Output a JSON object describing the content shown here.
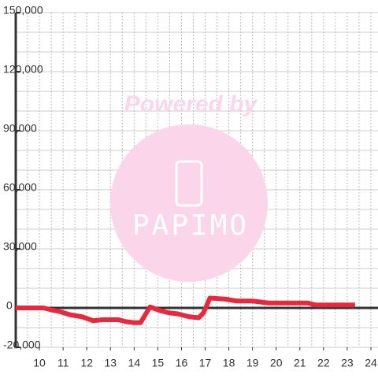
{
  "chart_data": {
    "type": "line",
    "watermark": {
      "title": "Powered by",
      "logo": "PAPIMO"
    },
    "x": [
      9.0,
      10.17,
      10.5,
      10.9,
      11.3,
      11.8,
      12.27,
      12.67,
      13.33,
      13.67,
      14.0,
      14.27,
      14.67,
      15.13,
      15.47,
      15.83,
      16.33,
      16.73,
      16.93,
      17.2,
      17.83,
      18.33,
      19.0,
      19.67,
      21.0,
      21.33,
      21.67,
      22.33,
      23.33
    ],
    "values": [
      0,
      0,
      -1000,
      -2000,
      -3500,
      -4500,
      -6500,
      -6000,
      -6000,
      -7000,
      -7500,
      -7500,
      500,
      -1500,
      -2500,
      -3000,
      -4500,
      -5000,
      -2500,
      5000,
      4500,
      3500,
      3500,
      2500,
      2500,
      2500,
      1500,
      1500,
      1500
    ],
    "color": "#e8283c",
    "xlim": [
      9,
      24.3
    ],
    "xticks": [
      10,
      11,
      12,
      13,
      14,
      15,
      16,
      17,
      18,
      19,
      20,
      21,
      22,
      23,
      24
    ],
    "ylim": [
      -20000,
      150000
    ],
    "yticks": [
      {
        "value": -20000,
        "label": "-20,000"
      },
      0,
      {
        "value": 30000,
        "label": "30,000"
      },
      {
        "value": 60000,
        "label": "60,000"
      },
      {
        "value": 90000,
        "label": "90,000"
      },
      {
        "value": 120000,
        "label": "120,000"
      },
      {
        "value": 150000,
        "label": "150,000"
      }
    ],
    "ygrid": [
      -20000,
      -10000,
      0,
      10000,
      20000,
      30000,
      40000,
      50000,
      60000,
      70000,
      80000,
      90000,
      100000,
      110000,
      120000,
      130000,
      140000,
      150000
    ],
    "xgrid": [
      9.5,
      10,
      10.5,
      11,
      11.5,
      12,
      12.5,
      13,
      13.5,
      14,
      14.5,
      15,
      15.5,
      16,
      16.5,
      17,
      17.5,
      18,
      18.5,
      19,
      19.5,
      20,
      20.5,
      21,
      21.5,
      22,
      22.5,
      23,
      23.5,
      24
    ],
    "grid": true
  }
}
